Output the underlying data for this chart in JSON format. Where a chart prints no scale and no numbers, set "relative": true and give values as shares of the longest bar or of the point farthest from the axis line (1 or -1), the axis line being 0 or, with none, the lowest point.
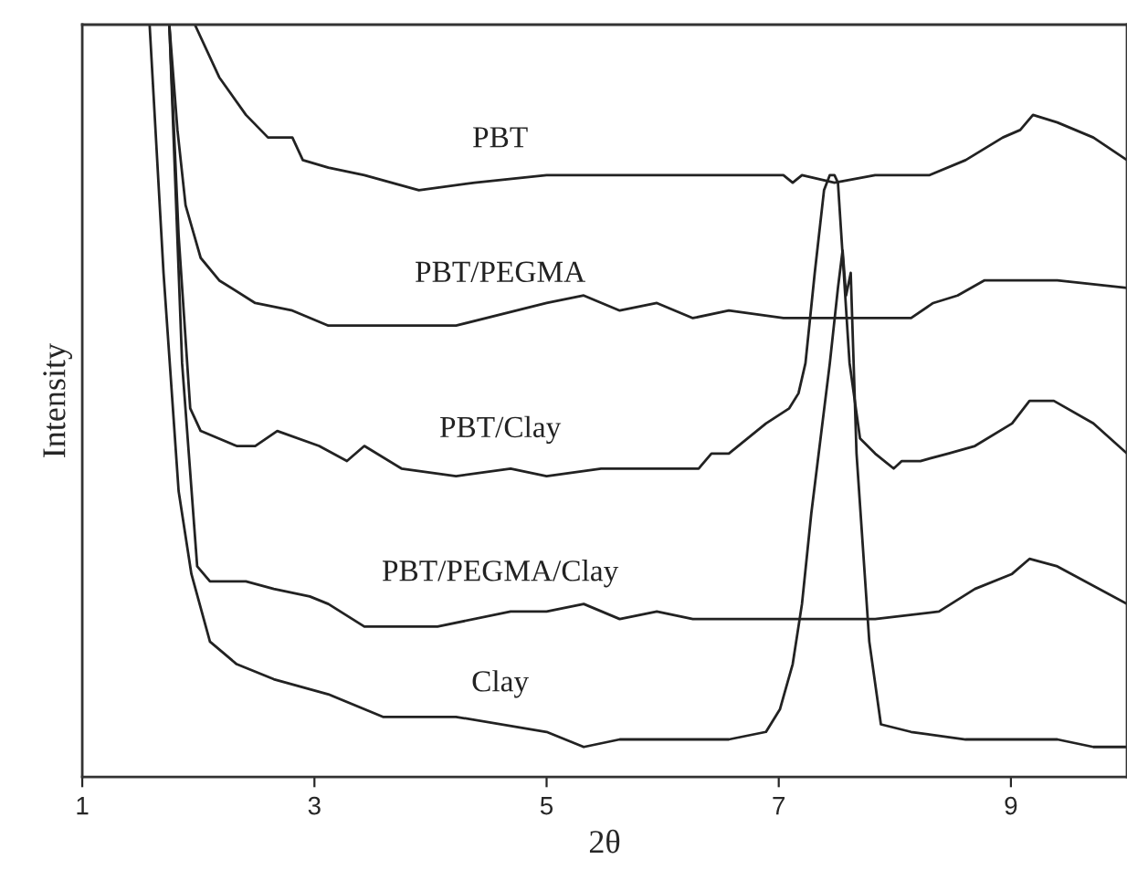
{
  "chart_data": {
    "type": "line",
    "relative": true,
    "xlabel": "2θ",
    "ylabel": "Intensity",
    "xlim": [
      1,
      10
    ],
    "xticks": [
      1,
      3,
      5,
      7,
      9
    ],
    "tick_labels": "x",
    "grid": false,
    "legend": false,
    "marker": "none",
    "line_style": "solid",
    "series": [
      {
        "name": "PBT",
        "color": "#222222",
        "x": [
          1.97,
          2.18,
          2.41,
          2.6,
          2.76,
          2.81,
          2.9,
          3.12,
          3.43,
          3.9,
          4.38,
          5.0,
          5.47,
          5.95,
          6.42,
          6.89,
          7.04,
          7.12,
          7.2,
          7.48,
          7.83,
          8.3,
          8.61,
          8.93,
          9.08,
          9.19,
          9.4,
          9.71,
          10.0
        ],
        "values": [
          1.0,
          0.93,
          0.88,
          0.85,
          0.85,
          0.85,
          0.82,
          0.81,
          0.8,
          0.78,
          0.79,
          0.8,
          0.8,
          0.8,
          0.8,
          0.8,
          0.8,
          0.79,
          0.8,
          0.79,
          0.8,
          0.8,
          0.82,
          0.85,
          0.86,
          0.88,
          0.87,
          0.85,
          0.82
        ]
      },
      {
        "name": "PBT/PEGMA",
        "color": "#222222",
        "x": [
          1.75,
          1.82,
          1.89,
          2.02,
          2.18,
          2.49,
          2.81,
          3.12,
          3.43,
          4.22,
          5.0,
          5.32,
          5.63,
          5.95,
          6.26,
          6.57,
          7.04,
          7.67,
          8.14,
          8.33,
          8.54,
          8.77,
          9.08,
          9.4,
          10.0
        ],
        "values": [
          1.0,
          0.86,
          0.76,
          0.69,
          0.66,
          0.63,
          0.62,
          0.6,
          0.6,
          0.6,
          0.63,
          0.64,
          0.62,
          0.63,
          0.61,
          0.62,
          0.61,
          0.61,
          0.61,
          0.63,
          0.64,
          0.66,
          0.66,
          0.66,
          0.65
        ]
      },
      {
        "name": "PBT/Clay",
        "color": "#222222",
        "x": [
          1.75,
          1.83,
          1.93,
          2.02,
          2.33,
          2.49,
          2.68,
          3.04,
          3.28,
          3.43,
          3.75,
          4.22,
          4.69,
          5.0,
          5.47,
          5.95,
          6.31,
          6.42,
          6.57,
          6.73,
          6.89,
          7.09,
          7.17,
          7.23,
          7.31,
          7.39,
          7.44,
          7.48,
          7.51,
          7.56,
          7.61,
          7.7,
          7.83,
          7.99,
          8.06,
          8.22,
          8.46,
          8.69,
          9.01,
          9.16,
          9.37,
          9.71,
          10.0
        ],
        "values": [
          1.0,
          0.72,
          0.49,
          0.46,
          0.44,
          0.44,
          0.46,
          0.44,
          0.42,
          0.44,
          0.41,
          0.4,
          0.41,
          0.4,
          0.41,
          0.41,
          0.41,
          0.43,
          0.43,
          0.45,
          0.47,
          0.49,
          0.51,
          0.55,
          0.67,
          0.78,
          0.8,
          0.8,
          0.79,
          0.67,
          0.55,
          0.45,
          0.43,
          0.41,
          0.42,
          0.42,
          0.43,
          0.44,
          0.47,
          0.5,
          0.5,
          0.47,
          0.43
        ]
      },
      {
        "name": "PBT/PEGMA/Clay",
        "color": "#222222",
        "x": [
          1.75,
          1.86,
          1.99,
          2.1,
          2.41,
          2.65,
          2.96,
          3.12,
          3.43,
          4.06,
          4.69,
          5.0,
          5.32,
          5.63,
          5.95,
          6.26,
          6.57,
          7.04,
          7.51,
          7.83,
          8.38,
          8.69,
          9.01,
          9.16,
          9.4,
          10.0
        ],
        "values": [
          1.0,
          0.55,
          0.28,
          0.26,
          0.26,
          0.25,
          0.24,
          0.23,
          0.2,
          0.2,
          0.22,
          0.22,
          0.23,
          0.21,
          0.22,
          0.21,
          0.21,
          0.21,
          0.21,
          0.21,
          0.22,
          0.25,
          0.27,
          0.29,
          0.28,
          0.23
        ]
      },
      {
        "name": "Clay",
        "color": "#222222",
        "x": [
          1.58,
          1.7,
          1.83,
          1.94,
          2.1,
          2.33,
          2.65,
          3.12,
          3.59,
          4.22,
          5.0,
          5.32,
          5.63,
          6.26,
          6.57,
          6.89,
          7.01,
          7.12,
          7.2,
          7.28,
          7.44,
          7.51,
          7.55,
          7.58,
          7.62,
          7.67,
          7.78,
          7.88,
          8.14,
          8.61,
          9.08,
          9.4,
          9.71,
          10.0
        ],
        "values": [
          1.0,
          0.67,
          0.38,
          0.27,
          0.18,
          0.15,
          0.13,
          0.11,
          0.08,
          0.08,
          0.06,
          0.04,
          0.05,
          0.05,
          0.05,
          0.06,
          0.09,
          0.15,
          0.23,
          0.35,
          0.55,
          0.65,
          0.7,
          0.64,
          0.67,
          0.43,
          0.18,
          0.07,
          0.06,
          0.05,
          0.05,
          0.05,
          0.04,
          0.04
        ]
      }
    ]
  }
}
